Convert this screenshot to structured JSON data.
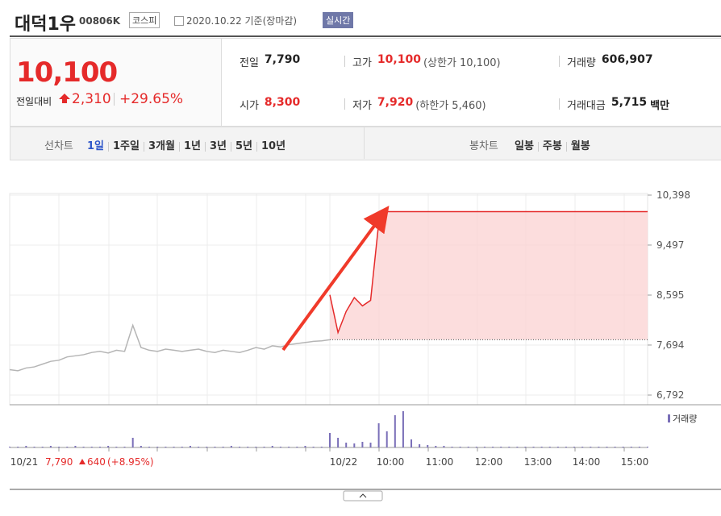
{
  "header": {
    "name": "대덕1우",
    "code": "00806K",
    "market": "코스피",
    "date": "2020.10.22 기준(장마감)",
    "badge": "실시간"
  },
  "quote": {
    "price": "10,100",
    "change_label": "전일대비",
    "change": "2,310",
    "change_rate": "+29.65%",
    "stats": [
      {
        "label": "전일",
        "value": "7,790"
      },
      {
        "label": "고가",
        "value": "10,100",
        "note": "(상한가 10,100)"
      },
      {
        "label": "거래량",
        "value": "606,907"
      },
      {
        "label": "시가",
        "value": "8,300"
      },
      {
        "label": "저가",
        "value": "7,920",
        "note": "(하한가 5,460)"
      },
      {
        "label": "거래대금",
        "value": "5,715",
        "unit": "백만"
      }
    ]
  },
  "tabs": {
    "line_label": "선차트",
    "line": [
      "1일",
      "1주일",
      "3개월",
      "1년",
      "3년",
      "5년",
      "10년"
    ],
    "candle_label": "봉차트",
    "candle": [
      "일봉",
      "주봉",
      "월봉"
    ]
  },
  "chart": {
    "ylim": [
      6792,
      10398
    ],
    "yticks": [
      {
        "value": 10398,
        "label": "10,398"
      },
      {
        "value": 9497,
        "label": "9,497"
      },
      {
        "value": 8595,
        "label": "8,595"
      },
      {
        "value": 7694,
        "label": "7,694"
      },
      {
        "value": 6792,
        "label": "6,792"
      }
    ],
    "prev_close": 7790,
    "prev_day": {
      "color": "#b5b5b5",
      "values": [
        7250,
        7230,
        7280,
        7300,
        7350,
        7400,
        7420,
        7480,
        7500,
        7520,
        7560,
        7580,
        7550,
        7600,
        7580,
        8050,
        7650,
        7600,
        7580,
        7620,
        7600,
        7580,
        7600,
        7620,
        7580,
        7560,
        7600,
        7580,
        7560,
        7600,
        7650,
        7620,
        7680,
        7660,
        7700,
        7720,
        7740,
        7760,
        7770,
        7790
      ]
    },
    "today": {
      "color": "#e52a2a",
      "values": [
        8600,
        7920,
        8300,
        8550,
        8400,
        8500,
        9900,
        10100,
        10100,
        10100,
        10100,
        10100,
        10100,
        10100,
        10100,
        10100,
        10100,
        10100,
        10100,
        10100,
        10100,
        10100,
        10100,
        10100,
        10100,
        10100,
        10100,
        10100,
        10100,
        10100,
        10100,
        10100,
        10100,
        10100,
        10100,
        10100,
        10100,
        10100,
        10100,
        10100
      ]
    },
    "volume_label": "거래량",
    "volume": {
      "color": "#7a6fb8",
      "values": [
        1,
        1,
        2,
        1,
        1,
        2,
        1,
        1,
        2,
        1,
        1,
        1,
        2,
        1,
        1,
        12,
        2,
        1,
        1,
        1,
        1,
        1,
        2,
        1,
        1,
        1,
        1,
        2,
        1,
        1,
        1,
        1,
        2,
        1,
        1,
        1,
        2,
        1,
        1,
        2,
        18,
        12,
        6,
        5,
        7,
        6,
        30,
        20,
        40,
        45,
        10,
        4,
        3,
        2,
        2,
        1,
        1,
        1,
        1,
        1,
        1,
        1,
        1,
        1,
        1,
        1,
        1,
        1,
        1,
        1,
        1,
        1,
        1,
        1,
        1,
        1,
        1,
        1,
        1,
        1
      ]
    },
    "x_labels": [
      "10/21",
      "10/22",
      "10:00",
      "11:00",
      "12:00",
      "13:00",
      "14:00",
      "15:00"
    ],
    "footer": {
      "prev_close": "7,790",
      "change": "640",
      "change_rate": "(+8.95%)"
    }
  }
}
